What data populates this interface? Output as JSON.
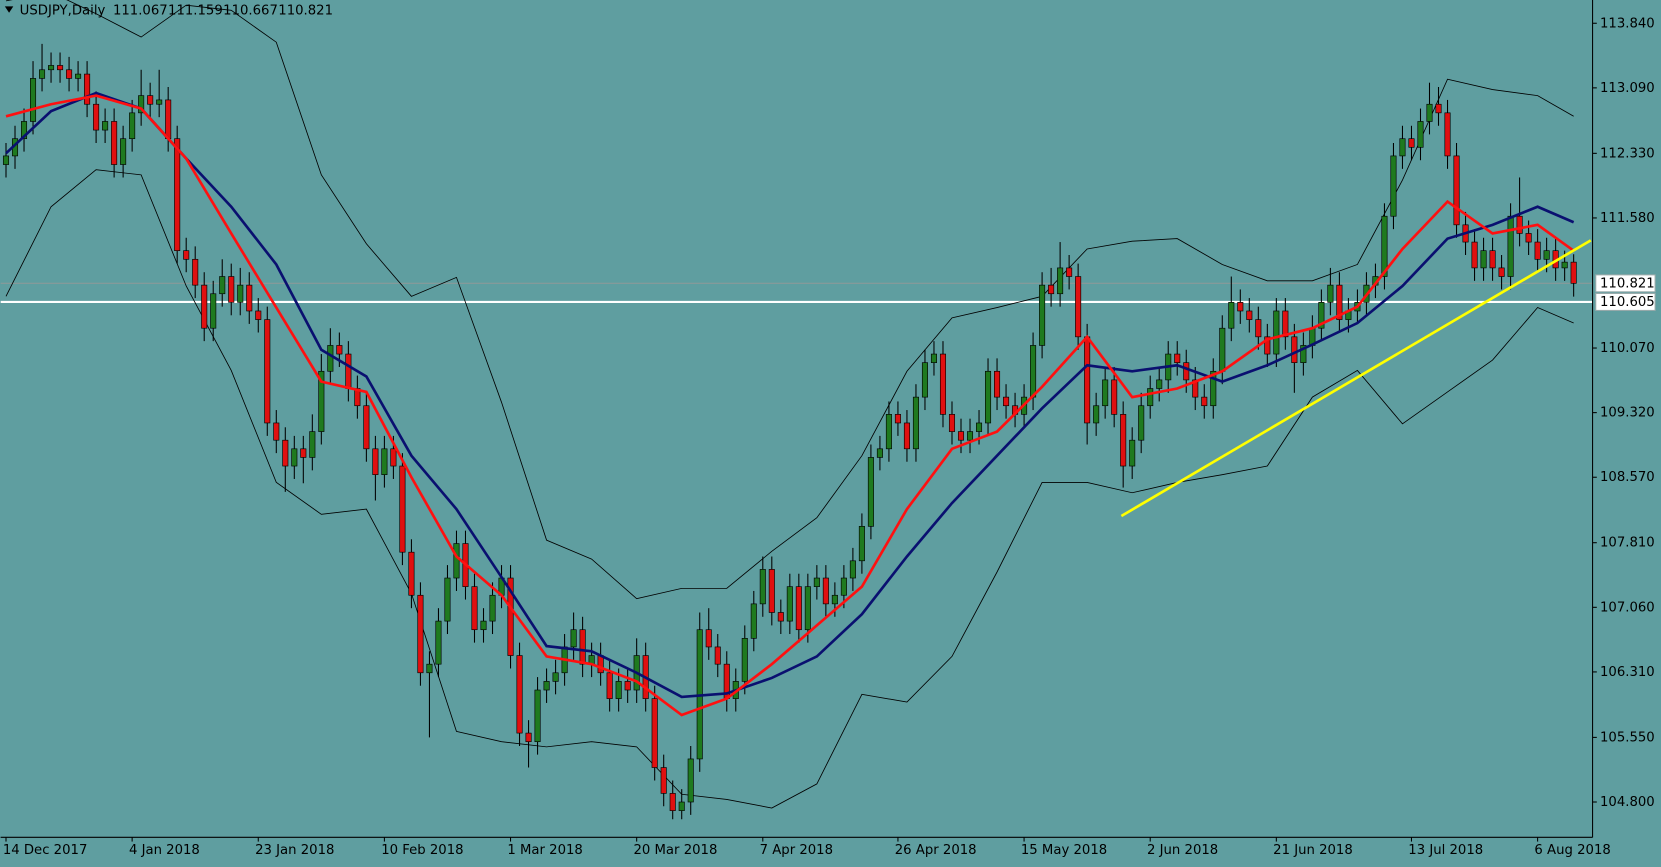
{
  "chart_data": {
    "type": "candlestick",
    "symbol": "USDJPY,Daily",
    "background": "#5f9ea0",
    "up_color": "#1f7a1f",
    "down_color": "#e01010",
    "wick_color": "#000000",
    "xlim": [
      -0.6,
      176.1
    ],
    "ylim": [
      104.39,
      114.11
    ],
    "xticks": [
      {
        "value": 0,
        "label": "14 Dec 2017"
      },
      {
        "value": 14,
        "label": "4 Jan 2018"
      },
      {
        "value": 28,
        "label": "23 Jan 2018"
      },
      {
        "value": 42,
        "label": "10 Feb 2018"
      },
      {
        "value": 56,
        "label": "1 Mar 2018"
      },
      {
        "value": 70,
        "label": "20 Mar 2018"
      },
      {
        "value": 84,
        "label": "7 Apr 2018"
      },
      {
        "value": 99,
        "label": "26 Apr 2018"
      },
      {
        "value": 113,
        "label": "15 May 2018"
      },
      {
        "value": 127,
        "label": "2 Jun 2018"
      },
      {
        "value": 141,
        "label": "21 Jun 2018"
      },
      {
        "value": 156,
        "label": "13 Jul 2018"
      },
      {
        "value": 170,
        "label": "6 Aug 2018"
      }
    ],
    "yticks": [
      {
        "value": 113.84,
        "label": "113.840"
      },
      {
        "value": 113.09,
        "label": "113.090"
      },
      {
        "value": 112.33,
        "label": "112.330"
      },
      {
        "value": 111.58,
        "label": "111.580"
      },
      {
        "value": 110.07,
        "label": "110.070"
      },
      {
        "value": 109.32,
        "label": "109.320"
      },
      {
        "value": 108.57,
        "label": "108.570"
      },
      {
        "value": 107.81,
        "label": "107.810"
      },
      {
        "value": 107.06,
        "label": "107.060"
      },
      {
        "value": 106.31,
        "label": "106.310"
      },
      {
        "value": 105.55,
        "label": "105.550"
      },
      {
        "value": 104.8,
        "label": "104.800"
      }
    ],
    "candles": [
      [
        112.2,
        112.45,
        112.05,
        112.3
      ],
      [
        112.3,
        112.65,
        112.15,
        112.5
      ],
      [
        112.5,
        112.85,
        112.35,
        112.7
      ],
      [
        112.7,
        113.4,
        112.55,
        113.2
      ],
      [
        113.2,
        113.6,
        113.05,
        113.3
      ],
      [
        113.3,
        113.5,
        113.15,
        113.35
      ],
      [
        113.35,
        113.5,
        113.15,
        113.3
      ],
      [
        113.3,
        113.45,
        113.05,
        113.2
      ],
      [
        113.2,
        113.4,
        113.05,
        113.25
      ],
      [
        113.25,
        113.4,
        112.75,
        112.9
      ],
      [
        112.9,
        113.05,
        112.45,
        112.6
      ],
      [
        112.6,
        112.85,
        112.45,
        112.7
      ],
      [
        112.7,
        112.85,
        112.05,
        112.2
      ],
      [
        112.2,
        112.65,
        112.05,
        112.5
      ],
      [
        112.5,
        112.95,
        112.35,
        112.8
      ],
      [
        112.8,
        113.3,
        112.65,
        113.0
      ],
      [
        113.0,
        113.15,
        112.75,
        112.9
      ],
      [
        112.9,
        113.3,
        112.75,
        112.95
      ],
      [
        112.95,
        113.1,
        112.35,
        112.5
      ],
      [
        112.5,
        112.65,
        111.05,
        111.2
      ],
      [
        111.2,
        111.35,
        110.95,
        111.1
      ],
      [
        111.1,
        111.25,
        110.65,
        110.8
      ],
      [
        110.8,
        110.95,
        110.15,
        110.3
      ],
      [
        110.3,
        110.85,
        110.15,
        110.7
      ],
      [
        110.7,
        111.1,
        110.55,
        110.9
      ],
      [
        110.9,
        111.05,
        110.45,
        110.6
      ],
      [
        110.6,
        111.0,
        110.45,
        110.8
      ],
      [
        110.8,
        110.95,
        110.35,
        110.5
      ],
      [
        110.5,
        110.65,
        110.25,
        110.4
      ],
      [
        110.4,
        110.55,
        109.05,
        109.2
      ],
      [
        109.2,
        109.35,
        108.85,
        109.0
      ],
      [
        109.0,
        109.15,
        108.4,
        108.7
      ],
      [
        108.7,
        109.05,
        108.55,
        108.9
      ],
      [
        108.9,
        109.05,
        108.5,
        108.8
      ],
      [
        108.8,
        109.3,
        108.65,
        109.1
      ],
      [
        109.1,
        110.0,
        108.95,
        109.8
      ],
      [
        109.8,
        110.3,
        109.65,
        110.1
      ],
      [
        110.1,
        110.25,
        109.85,
        110.0
      ],
      [
        110.0,
        110.15,
        109.45,
        109.6
      ],
      [
        109.6,
        109.75,
        109.25,
        109.4
      ],
      [
        109.4,
        109.55,
        108.75,
        108.9
      ],
      [
        108.9,
        109.05,
        108.3,
        108.6
      ],
      [
        108.6,
        109.05,
        108.45,
        108.9
      ],
      [
        108.9,
        109.05,
        108.55,
        108.7
      ],
      [
        108.7,
        108.85,
        107.55,
        107.7
      ],
      [
        107.7,
        107.85,
        107.05,
        107.2
      ],
      [
        107.2,
        107.35,
        106.15,
        106.3
      ],
      [
        106.3,
        106.55,
        105.55,
        106.4
      ],
      [
        106.4,
        107.05,
        106.25,
        106.9
      ],
      [
        106.9,
        107.55,
        106.75,
        107.4
      ],
      [
        107.4,
        107.95,
        107.25,
        107.8
      ],
      [
        107.8,
        107.95,
        107.15,
        107.3
      ],
      [
        107.3,
        107.45,
        106.65,
        106.8
      ],
      [
        106.8,
        107.05,
        106.65,
        106.9
      ],
      [
        106.9,
        107.35,
        106.75,
        107.2
      ],
      [
        107.2,
        107.55,
        107.05,
        107.4
      ],
      [
        107.4,
        107.55,
        106.35,
        106.5
      ],
      [
        106.5,
        106.65,
        105.45,
        105.6
      ],
      [
        105.6,
        105.75,
        105.2,
        105.5
      ],
      [
        105.5,
        106.25,
        105.35,
        106.1
      ],
      [
        106.1,
        106.35,
        105.95,
        106.2
      ],
      [
        106.2,
        106.45,
        106.05,
        106.3
      ],
      [
        106.3,
        106.75,
        106.15,
        106.6
      ],
      [
        106.6,
        107.0,
        106.45,
        106.8
      ],
      [
        106.8,
        106.95,
        106.25,
        106.4
      ],
      [
        106.4,
        106.65,
        106.25,
        106.5
      ],
      [
        106.5,
        106.65,
        106.15,
        106.3
      ],
      [
        106.3,
        106.45,
        105.85,
        106.0
      ],
      [
        106.0,
        106.35,
        105.85,
        106.2
      ],
      [
        106.2,
        106.35,
        105.95,
        106.1
      ],
      [
        106.1,
        106.7,
        105.95,
        106.5
      ],
      [
        106.5,
        106.65,
        105.85,
        106.0
      ],
      [
        106.0,
        106.15,
        105.05,
        105.2
      ],
      [
        105.2,
        105.35,
        104.75,
        104.9
      ],
      [
        104.9,
        105.05,
        104.6,
        104.7
      ],
      [
        104.7,
        104.95,
        104.6,
        104.8
      ],
      [
        104.8,
        105.45,
        104.65,
        105.3
      ],
      [
        105.3,
        107.0,
        105.15,
        106.8
      ],
      [
        106.8,
        107.05,
        106.45,
        106.6
      ],
      [
        106.6,
        106.75,
        106.25,
        106.4
      ],
      [
        106.4,
        106.55,
        105.85,
        106.0
      ],
      [
        106.0,
        106.35,
        105.85,
        106.2
      ],
      [
        106.2,
        106.85,
        106.05,
        106.7
      ],
      [
        106.7,
        107.25,
        106.55,
        107.1
      ],
      [
        107.1,
        107.65,
        106.95,
        107.5
      ],
      [
        107.5,
        107.65,
        106.85,
        107.0
      ],
      [
        107.0,
        107.15,
        106.75,
        106.9
      ],
      [
        106.9,
        107.45,
        106.75,
        107.3
      ],
      [
        107.3,
        107.45,
        106.65,
        106.8
      ],
      [
        106.8,
        107.45,
        106.65,
        107.3
      ],
      [
        107.3,
        107.55,
        107.15,
        107.4
      ],
      [
        107.4,
        107.55,
        106.95,
        107.1
      ],
      [
        107.1,
        107.35,
        106.95,
        107.2
      ],
      [
        107.2,
        107.55,
        107.05,
        107.4
      ],
      [
        107.4,
        107.75,
        107.25,
        107.6
      ],
      [
        107.6,
        108.15,
        107.45,
        108.0
      ],
      [
        108.0,
        108.95,
        107.85,
        108.8
      ],
      [
        108.8,
        109.05,
        108.65,
        108.9
      ],
      [
        108.9,
        109.45,
        108.75,
        109.3
      ],
      [
        109.3,
        109.45,
        109.05,
        109.2
      ],
      [
        109.2,
        109.35,
        108.75,
        108.9
      ],
      [
        108.9,
        109.65,
        108.75,
        109.5
      ],
      [
        109.5,
        110.05,
        109.35,
        109.9
      ],
      [
        109.9,
        110.15,
        109.75,
        110.0
      ],
      [
        110.0,
        110.15,
        109.15,
        109.3
      ],
      [
        109.3,
        109.45,
        108.95,
        109.1
      ],
      [
        109.1,
        109.25,
        108.85,
        109.0
      ],
      [
        109.0,
        109.25,
        108.85,
        109.1
      ],
      [
        109.1,
        109.35,
        108.95,
        109.2
      ],
      [
        109.2,
        109.95,
        109.05,
        109.8
      ],
      [
        109.8,
        109.95,
        109.35,
        109.5
      ],
      [
        109.5,
        109.65,
        109.25,
        109.4
      ],
      [
        109.4,
        109.55,
        109.15,
        109.3
      ],
      [
        109.3,
        109.65,
        109.15,
        109.5
      ],
      [
        109.5,
        110.25,
        109.35,
        110.1
      ],
      [
        110.1,
        110.95,
        109.95,
        110.8
      ],
      [
        110.8,
        111.0,
        110.55,
        110.7
      ],
      [
        110.7,
        111.3,
        110.55,
        111.0
      ],
      [
        111.0,
        111.15,
        110.75,
        110.9
      ],
      [
        110.9,
        111.05,
        110.05,
        110.2
      ],
      [
        110.2,
        110.35,
        108.95,
        109.2
      ],
      [
        109.2,
        109.55,
        109.05,
        109.4
      ],
      [
        109.4,
        109.85,
        109.25,
        109.7
      ],
      [
        109.7,
        109.85,
        109.15,
        109.3
      ],
      [
        109.3,
        109.45,
        108.45,
        108.7
      ],
      [
        108.7,
        109.15,
        108.55,
        109.0
      ],
      [
        109.0,
        109.55,
        108.85,
        109.4
      ],
      [
        109.4,
        109.75,
        109.25,
        109.6
      ],
      [
        109.6,
        109.85,
        109.45,
        109.7
      ],
      [
        109.7,
        110.15,
        109.55,
        110.0
      ],
      [
        110.0,
        110.15,
        109.75,
        109.9
      ],
      [
        109.9,
        110.05,
        109.55,
        109.7
      ],
      [
        109.7,
        109.85,
        109.35,
        109.5
      ],
      [
        109.5,
        109.65,
        109.25,
        109.4
      ],
      [
        109.4,
        109.95,
        109.25,
        109.8
      ],
      [
        109.8,
        110.45,
        109.65,
        110.3
      ],
      [
        110.3,
        110.9,
        110.15,
        110.6
      ],
      [
        110.6,
        110.75,
        110.35,
        110.5
      ],
      [
        110.5,
        110.65,
        110.25,
        110.4
      ],
      [
        110.4,
        110.55,
        110.05,
        110.2
      ],
      [
        110.2,
        110.35,
        109.85,
        110.0
      ],
      [
        110.0,
        110.65,
        109.85,
        110.5
      ],
      [
        110.5,
        110.65,
        110.05,
        110.2
      ],
      [
        110.2,
        110.35,
        109.55,
        109.9
      ],
      [
        109.9,
        110.25,
        109.75,
        110.1
      ],
      [
        110.1,
        110.45,
        109.95,
        110.3
      ],
      [
        110.3,
        110.75,
        110.15,
        110.6
      ],
      [
        110.6,
        111.0,
        110.45,
        110.8
      ],
      [
        110.8,
        110.95,
        110.25,
        110.4
      ],
      [
        110.4,
        110.65,
        110.25,
        110.5
      ],
      [
        110.5,
        110.75,
        110.35,
        110.6
      ],
      [
        110.6,
        110.95,
        110.45,
        110.8
      ],
      [
        110.8,
        111.05,
        110.65,
        110.9
      ],
      [
        110.9,
        111.75,
        110.75,
        111.6
      ],
      [
        111.6,
        112.45,
        111.45,
        112.3
      ],
      [
        112.3,
        112.65,
        112.15,
        112.5
      ],
      [
        112.5,
        112.65,
        112.25,
        112.4
      ],
      [
        112.4,
        112.85,
        112.25,
        112.7
      ],
      [
        112.7,
        113.15,
        112.55,
        112.9
      ],
      [
        112.9,
        113.1,
        112.65,
        112.8
      ],
      [
        112.8,
        112.95,
        112.15,
        112.3
      ],
      [
        112.3,
        112.45,
        111.35,
        111.5
      ],
      [
        111.5,
        111.65,
        111.15,
        111.3
      ],
      [
        111.3,
        111.45,
        110.85,
        111.0
      ],
      [
        111.0,
        111.35,
        110.85,
        111.2
      ],
      [
        111.2,
        111.35,
        110.85,
        111.0
      ],
      [
        111.0,
        111.15,
        110.75,
        110.9
      ],
      [
        110.9,
        111.75,
        110.75,
        111.6
      ],
      [
        111.6,
        112.05,
        111.25,
        111.4
      ],
      [
        111.4,
        111.55,
        111.15,
        111.3
      ],
      [
        111.3,
        111.45,
        110.95,
        111.1
      ],
      [
        111.1,
        111.35,
        110.95,
        111.2
      ],
      [
        111.2,
        111.35,
        110.85,
        111.0
      ],
      [
        111.0,
        111.2,
        110.85,
        111.067
      ],
      [
        111.067,
        111.159,
        110.667,
        110.821
      ]
    ],
    "line_x": [
      0,
      5,
      10,
      15,
      20,
      25,
      30,
      35,
      40,
      45,
      50,
      55,
      60,
      65,
      70,
      75,
      80,
      85,
      90,
      95,
      100,
      105,
      110,
      115,
      120,
      125,
      130,
      135,
      140,
      145,
      150,
      155,
      160,
      165,
      170,
      174
    ],
    "lines": [
      {
        "color": "#000000",
        "width": 0.8,
        "values": [
          114.1,
          114.2,
          113.95,
          113.68,
          114.05,
          113.99,
          113.62,
          112.08,
          111.28,
          110.67,
          110.89,
          109.44,
          107.84,
          107.62,
          107.16,
          107.28,
          107.28,
          107.71,
          108.1,
          108.82,
          109.8,
          110.42,
          110.54,
          110.67,
          111.22,
          111.31,
          111.34,
          111.04,
          110.85,
          110.85,
          111.04,
          112.02,
          113.19,
          113.07,
          113.0,
          112.76
        ]
      },
      {
        "color": "#000000",
        "width": 0.8,
        "values": [
          110.67,
          111.71,
          112.14,
          112.08,
          110.79,
          109.81,
          108.51,
          108.14,
          108.2,
          107.22,
          105.62,
          105.5,
          105.44,
          105.5,
          105.44,
          104.89,
          104.83,
          104.73,
          105.01,
          106.05,
          105.96,
          106.49,
          107.47,
          108.51,
          108.51,
          108.39,
          108.51,
          108.6,
          108.7,
          109.5,
          109.81,
          109.19,
          109.56,
          109.93,
          110.54,
          110.36
        ]
      },
      {
        "color": "#0a1070",
        "width": 2.5,
        "values": [
          112.33,
          112.82,
          113.03,
          112.85,
          112.27,
          111.71,
          111.04,
          110.05,
          109.74,
          108.82,
          108.2,
          107.41,
          106.61,
          106.55,
          106.3,
          106.02,
          106.06,
          106.24,
          106.49,
          106.98,
          107.65,
          108.27,
          108.82,
          109.37,
          109.87,
          109.8,
          109.87,
          109.68,
          109.87,
          110.11,
          110.36,
          110.79,
          111.34,
          111.5,
          111.71,
          111.53
        ]
      },
      {
        "color": "#ff1010",
        "width": 2.5,
        "values": [
          112.76,
          112.9,
          113.0,
          112.85,
          112.27,
          111.4,
          110.54,
          109.68,
          109.56,
          108.57,
          107.65,
          107.2,
          106.49,
          106.4,
          106.2,
          105.81,
          106.0,
          106.4,
          106.85,
          107.3,
          108.2,
          108.9,
          109.1,
          109.62,
          110.2,
          109.5,
          109.6,
          109.8,
          110.17,
          110.3,
          110.55,
          111.22,
          111.77,
          111.4,
          111.5,
          111.2
        ]
      }
    ],
    "trendline": {
      "x": [
        123.8,
        175.9
      ],
      "values": [
        108.12,
        111.32
      ],
      "color": "#ffff00"
    },
    "hline": {
      "value": 110.605,
      "color": "#ffffff"
    }
  }
}
